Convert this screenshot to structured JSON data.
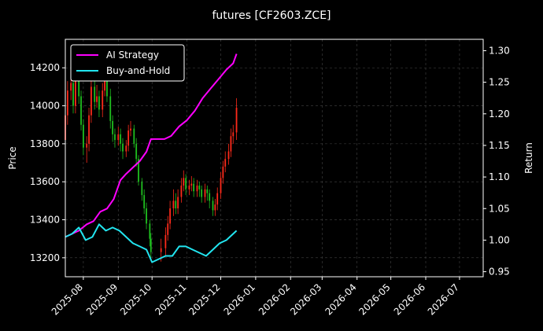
{
  "chart_data": {
    "type": "line",
    "title": "futures [CF2603.ZCE]",
    "xlabel": "",
    "ylabel_left": "Price",
    "ylabel_right": "Return",
    "x_ticks": [
      "2025-08",
      "2025-09",
      "2025-10",
      "2025-11",
      "2025-12",
      "2026-01",
      "2026-02",
      "2026-03",
      "2026-04",
      "2026-05",
      "2026-06",
      "2026-07"
    ],
    "x_range": [
      "2025-07-16",
      "2026-07-22"
    ],
    "y_left_ticks": [
      "13200",
      "13400",
      "13600",
      "13800",
      "14000",
      "14200"
    ],
    "y_left_range": [
      13100,
      14350
    ],
    "y_right_ticks": [
      "0.95",
      "1.00",
      "1.05",
      "1.10",
      "1.15",
      "1.20",
      "1.25",
      "1.30"
    ],
    "y_right_range": [
      0.942,
      1.318
    ],
    "grid": true,
    "legend_position": "top-left",
    "colors": {
      "background": "#000000",
      "axes": "#ffffff",
      "grid": "#444444",
      "up": "#ff2a1a",
      "down": "#1fbf1f",
      "strategy": "#ff00ff",
      "hold": "#22e5f0"
    },
    "series": [
      {
        "name": "AI Strategy",
        "axis": "right",
        "color": "#ff00ff",
        "x": [
          "2025-07-16",
          "2025-07-22",
          "2025-07-28",
          "2025-08-04",
          "2025-08-10",
          "2025-08-16",
          "2025-08-22",
          "2025-08-28",
          "2025-09-03",
          "2025-09-08",
          "2025-09-14",
          "2025-09-20",
          "2025-09-26",
          "2025-09-30",
          "2025-10-06",
          "2025-10-12",
          "2025-10-18",
          "2025-10-25",
          "2025-11-01",
          "2025-11-08",
          "2025-11-15",
          "2025-11-22",
          "2025-11-29",
          "2025-12-06",
          "2025-12-12",
          "2025-12-15"
        ],
        "values": [
          1.005,
          1.01,
          1.015,
          1.025,
          1.03,
          1.045,
          1.05,
          1.065,
          1.095,
          1.105,
          1.115,
          1.125,
          1.14,
          1.16,
          1.16,
          1.16,
          1.165,
          1.18,
          1.19,
          1.205,
          1.225,
          1.24,
          1.255,
          1.27,
          1.28,
          1.295
        ]
      },
      {
        "name": "Buy-and-Hold",
        "axis": "right",
        "color": "#22e5f0",
        "x": [
          "2025-07-16",
          "2025-07-22",
          "2025-07-28",
          "2025-08-03",
          "2025-08-09",
          "2025-08-15",
          "2025-08-21",
          "2025-08-27",
          "2025-09-02",
          "2025-09-08",
          "2025-09-14",
          "2025-09-20",
          "2025-09-26",
          "2025-10-01",
          "2025-10-07",
          "2025-10-13",
          "2025-10-19",
          "2025-10-25",
          "2025-10-31",
          "2025-11-06",
          "2025-11-12",
          "2025-11-18",
          "2025-11-24",
          "2025-11-30",
          "2025-12-06",
          "2025-12-12",
          "2025-12-15"
        ],
        "values": [
          1.005,
          1.01,
          1.02,
          1.0,
          1.005,
          1.025,
          1.015,
          1.02,
          1.015,
          1.005,
          0.995,
          0.99,
          0.985,
          0.965,
          0.97,
          0.975,
          0.975,
          0.99,
          0.99,
          0.985,
          0.98,
          0.975,
          0.985,
          0.995,
          1.0,
          1.01,
          1.015
        ]
      }
    ],
    "candles": {
      "axis": "left",
      "x": [
        "2025-07-16",
        "2025-07-18",
        "2025-07-21",
        "2025-07-23",
        "2025-07-25",
        "2025-07-28",
        "2025-07-30",
        "2025-08-01",
        "2025-08-04",
        "2025-08-06",
        "2025-08-08",
        "2025-08-11",
        "2025-08-13",
        "2025-08-15",
        "2025-08-18",
        "2025-08-20",
        "2025-08-22",
        "2025-08-25",
        "2025-08-27",
        "2025-08-29",
        "2025-09-01",
        "2025-09-03",
        "2025-09-05",
        "2025-09-08",
        "2025-09-10",
        "2025-09-12",
        "2025-09-15",
        "2025-09-17",
        "2025-09-19",
        "2025-09-22",
        "2025-09-24",
        "2025-09-26",
        "2025-09-29",
        "2025-09-30",
        "2025-10-09",
        "2025-10-13",
        "2025-10-15",
        "2025-10-17",
        "2025-10-20",
        "2025-10-22",
        "2025-10-24",
        "2025-10-27",
        "2025-10-29",
        "2025-10-31",
        "2025-11-03",
        "2025-11-05",
        "2025-11-07",
        "2025-11-10",
        "2025-11-12",
        "2025-11-14",
        "2025-11-17",
        "2025-11-19",
        "2025-11-21",
        "2025-11-24",
        "2025-11-26",
        "2025-11-28",
        "2025-12-01",
        "2025-12-03",
        "2025-12-05",
        "2025-12-08",
        "2025-12-10",
        "2025-12-12",
        "2025-12-15"
      ],
      "open": [
        13820,
        13950,
        14080,
        14120,
        14000,
        14150,
        14050,
        13900,
        13780,
        13800,
        13950,
        14100,
        14020,
        14050,
        13980,
        14080,
        14150,
        14050,
        13920,
        13850,
        13820,
        13850,
        13800,
        13760,
        13790,
        13870,
        13880,
        13800,
        13720,
        13600,
        13530,
        13460,
        13380,
        13300,
        13230,
        13250,
        13320,
        13380,
        13460,
        13500,
        13460,
        13520,
        13580,
        13620,
        13560,
        13580,
        13590,
        13550,
        13580,
        13560,
        13520,
        13560,
        13540,
        13500,
        13450,
        13480,
        13540,
        13620,
        13680,
        13720,
        13760,
        13840,
        13860
      ],
      "close": [
        13950,
        14080,
        14120,
        14000,
        14150,
        14050,
        13900,
        13780,
        13800,
        13950,
        14100,
        14020,
        14050,
        13980,
        14080,
        14150,
        14050,
        13920,
        13850,
        13820,
        13850,
        13800,
        13760,
        13790,
        13870,
        13880,
        13800,
        13720,
        13600,
        13530,
        13460,
        13380,
        13300,
        13230,
        13250,
        13320,
        13380,
        13460,
        13500,
        13460,
        13520,
        13580,
        13620,
        13560,
        13580,
        13590,
        13550,
        13580,
        13560,
        13520,
        13560,
        13540,
        13500,
        13450,
        13480,
        13540,
        13620,
        13680,
        13720,
        13760,
        13840,
        13860,
        13990
      ],
      "high": [
        13990,
        14130,
        14180,
        14160,
        14190,
        14180,
        14080,
        13930,
        13840,
        13990,
        14150,
        14130,
        14110,
        14080,
        14120,
        14190,
        14170,
        14090,
        13950,
        13880,
        13890,
        13880,
        13830,
        13820,
        13900,
        13920,
        13900,
        13830,
        13740,
        13620,
        13560,
        13490,
        13400,
        13330,
        13300,
        13360,
        13420,
        13500,
        13560,
        13540,
        13560,
        13620,
        13660,
        13640,
        13610,
        13630,
        13620,
        13610,
        13600,
        13580,
        13590,
        13580,
        13560,
        13520,
        13510,
        13570,
        13650,
        13710,
        13760,
        13800,
        13880,
        13900,
        14040
      ],
      "low": [
        13780,
        13900,
        14030,
        13960,
        13960,
        14010,
        13870,
        13740,
        13700,
        13760,
        13910,
        13980,
        13990,
        13940,
        13940,
        14050,
        14020,
        13880,
        13810,
        13780,
        13790,
        13760,
        13720,
        13730,
        13760,
        13840,
        13780,
        13680,
        13580,
        13500,
        13430,
        13350,
        13260,
        13200,
        13180,
        13210,
        13290,
        13350,
        13420,
        13430,
        13430,
        13490,
        13550,
        13530,
        13530,
        13550,
        13520,
        13520,
        13520,
        13490,
        13490,
        13500,
        13460,
        13420,
        13420,
        13450,
        13510,
        13590,
        13650,
        13690,
        13730,
        13800,
        13820
      ]
    }
  }
}
